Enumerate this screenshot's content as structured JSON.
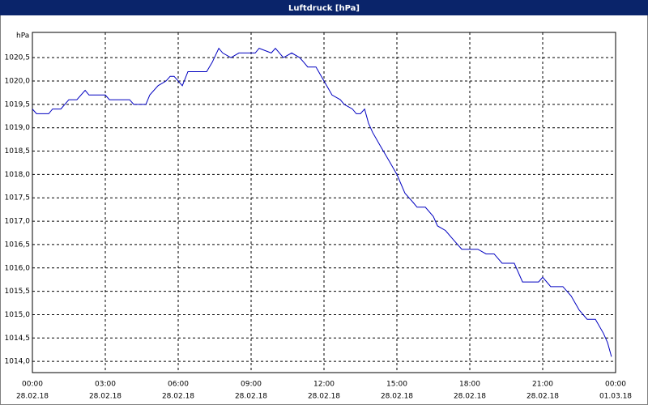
{
  "chart_data": {
    "type": "line",
    "title": "Luftdruck [hPa]",
    "y_label": "hPa",
    "x": [
      0,
      0.17,
      0.67,
      0.83,
      1.17,
      1.5,
      1.83,
      2.17,
      2.33,
      3,
      3.17,
      4,
      4.17,
      4.67,
      4.83,
      5.17,
      5.5,
      5.67,
      5.83,
      6.17,
      6.4,
      6.67,
      7.17,
      7.4,
      7.67,
      7.83,
      8.17,
      8.5,
      9.17,
      9.33,
      9.83,
      10,
      10.33,
      10.67,
      11,
      11.17,
      11.33,
      11.67,
      12,
      12.33,
      12.67,
      12.83,
      13.17,
      13.33,
      13.5,
      13.67,
      13.83,
      14,
      14.33,
      14.67,
      15,
      15.33,
      15.67,
      15.83,
      16.17,
      16.5,
      16.67,
      17,
      17.33,
      17.67,
      18.33,
      18.67,
      19,
      19.33,
      19.83,
      20.17,
      20.83,
      21,
      21.33,
      21.83,
      22.17,
      22.5,
      22.83,
      23.17,
      23.5,
      23.67,
      23.83
    ],
    "series": [
      {
        "name": "Luftdruck",
        "color": "#0000c0",
        "values": [
          1019.4,
          1019.3,
          1019.3,
          1019.4,
          1019.4,
          1019.6,
          1019.6,
          1019.8,
          1019.7,
          1019.7,
          1019.6,
          1019.6,
          1019.5,
          1019.5,
          1019.7,
          1019.9,
          1020.0,
          1020.1,
          1020.1,
          1019.9,
          1020.2,
          1020.2,
          1020.2,
          1020.4,
          1020.7,
          1020.6,
          1020.5,
          1020.6,
          1020.6,
          1020.7,
          1020.6,
          1020.7,
          1020.5,
          1020.6,
          1020.5,
          1020.4,
          1020.3,
          1020.3,
          1020.0,
          1019.7,
          1019.6,
          1019.5,
          1019.4,
          1019.3,
          1019.3,
          1019.4,
          1019.1,
          1018.9,
          1018.6,
          1018.3,
          1018.0,
          1017.6,
          1017.4,
          1017.3,
          1017.3,
          1017.1,
          1016.9,
          1016.8,
          1016.6,
          1016.4,
          1016.4,
          1016.3,
          1016.3,
          1016.1,
          1016.1,
          1015.7,
          1015.7,
          1015.8,
          1015.6,
          1015.6,
          1015.4,
          1015.1,
          1014.9,
          1014.9,
          1014.6,
          1014.4,
          1014.1
        ]
      }
    ],
    "xlim": [
      0,
      24
    ],
    "xticks": [
      {
        "value": 0,
        "label": "00:00"
      },
      {
        "value": 3,
        "label": "03:00"
      },
      {
        "value": 6,
        "label": "06:00"
      },
      {
        "value": 9,
        "label": "09:00"
      },
      {
        "value": 12,
        "label": "12:00"
      },
      {
        "value": 15,
        "label": "15:00"
      },
      {
        "value": 18,
        "label": "18:00"
      },
      {
        "value": 21,
        "label": "21:00"
      },
      {
        "value": 24,
        "label": "00:00"
      }
    ],
    "xtick_dates": [
      "28.02.18",
      "28.02.18",
      "28.02.18",
      "28.02.18",
      "28.02.18",
      "28.02.18",
      "28.02.18",
      "28.02.18",
      "01.03.18"
    ],
    "ylim": [
      1013.76,
      1021.04
    ],
    "yticks": [
      {
        "value": 1014.0,
        "label": "1014,0"
      },
      {
        "value": 1014.5,
        "label": "1014,5"
      },
      {
        "value": 1015.0,
        "label": "1015,0"
      },
      {
        "value": 1015.5,
        "label": "1015,5"
      },
      {
        "value": 1016.0,
        "label": "1016,0"
      },
      {
        "value": 1016.5,
        "label": "1016,5"
      },
      {
        "value": 1017.0,
        "label": "1017,0"
      },
      {
        "value": 1017.5,
        "label": "1017,5"
      },
      {
        "value": 1018.0,
        "label": "1018,0"
      },
      {
        "value": 1018.5,
        "label": "1018,5"
      },
      {
        "value": 1019.0,
        "label": "1019,0"
      },
      {
        "value": 1019.5,
        "label": "1019,5"
      },
      {
        "value": 1020.0,
        "label": "1020,0"
      },
      {
        "value": 1020.5,
        "label": "1020,5"
      }
    ],
    "grid": true
  }
}
